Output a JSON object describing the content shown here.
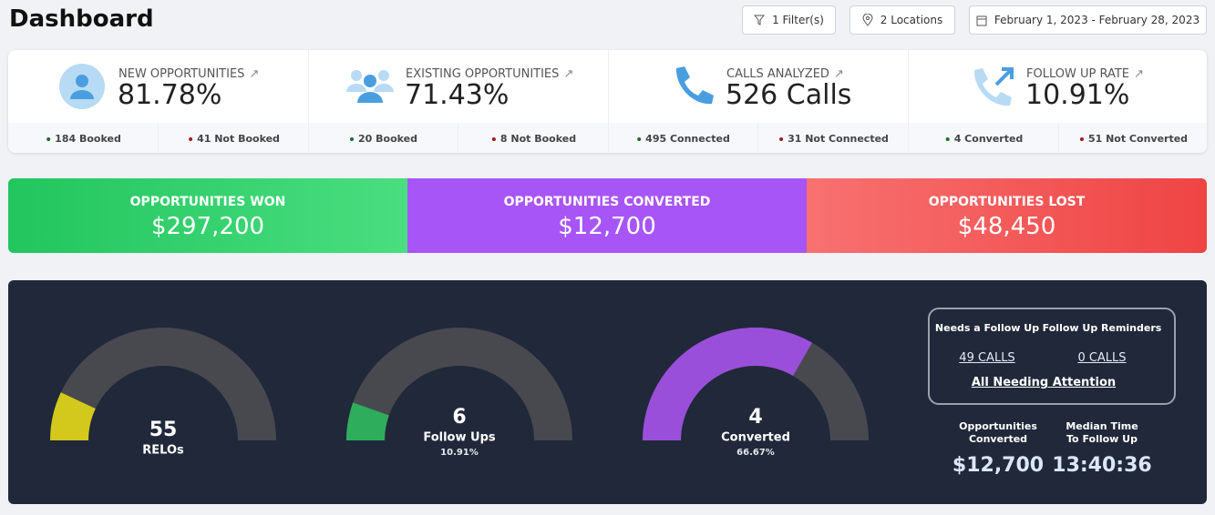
{
  "header": {
    "title": "Dashboard",
    "filters": "1 Filter(s)",
    "locations": "2 Locations",
    "date_range": "February 1, 2023 - February 28, 2023"
  },
  "metrics": [
    {
      "label": "NEW OPPORTUNITIES",
      "value": "81.78%",
      "stats": [
        "184 Booked",
        "41 Not Booked"
      ]
    },
    {
      "label": "EXISTING OPPORTUNITIES",
      "value": "71.43%",
      "stats": [
        "20 Booked",
        "8 Not Booked"
      ]
    },
    {
      "label": "CALLS ANALYZED",
      "value": "526 Calls",
      "stats": [
        "495 Connected",
        "31 Not Connected"
      ]
    },
    {
      "label": "FOLLOW UP RATE",
      "value": "10.91%",
      "stats": [
        "4 Converted",
        "51 Not Converted"
      ]
    }
  ],
  "totals": [
    {
      "label": "OPPORTUNITIES WON",
      "value": "$297,200"
    },
    {
      "label": "OPPORTUNITIES CONVERTED",
      "value": "$12,700"
    },
    {
      "label": "OPPORTUNITIES LOST",
      "value": "$48,450"
    }
  ],
  "gauges": [
    {
      "value": 55,
      "label": "RELOs",
      "percent": 14,
      "color": "#d2c91c"
    },
    {
      "value": 6,
      "label": "Follow Ups",
      "percent": 10.91,
      "percent_label": "10.91%",
      "color": "#2eae5c"
    },
    {
      "value": 4,
      "label": "Converted",
      "percent": 66.67,
      "percent_label": "66.67%",
      "color": "#9a4fdb"
    }
  ],
  "follow_up": {
    "needs_label": "Needs a Follow Up",
    "needs_value": "49 CALLS",
    "reminders_label": "Follow Up Reminders",
    "reminders_value": "0 CALLS",
    "link": "All Needing Attention"
  },
  "summary": [
    {
      "label": "Opportunities Converted",
      "value": "$12,700"
    },
    {
      "label": "Median Time To Follow Up",
      "value": "13:40:36"
    }
  ]
}
